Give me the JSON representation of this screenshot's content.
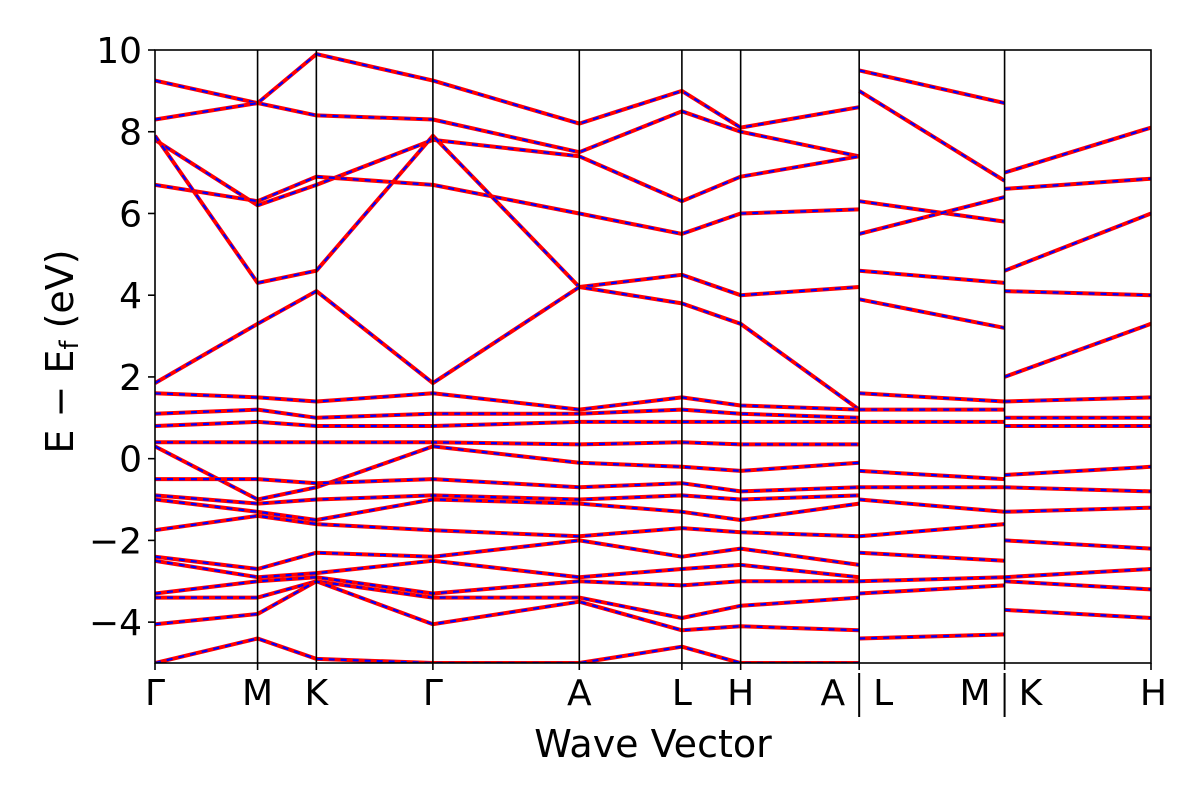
{
  "chart_data": {
    "type": "line",
    "xlabel": "Wave Vector",
    "ylabel": "E − E",
    "ylabel_subscript": "f",
    "ylabel_unit": "(eV)",
    "ylim": [
      -5,
      10
    ],
    "yticks": [
      -4,
      -2,
      0,
      2,
      4,
      6,
      8,
      10
    ],
    "ytick_labels": [
      "−4",
      "−2",
      "0",
      "2",
      "4",
      "6",
      "8",
      "10"
    ],
    "xlim": [
      0,
      1
    ],
    "kpoints": [
      {
        "label": "Γ",
        "x": 0.0,
        "divider": false
      },
      {
        "label": "M",
        "x": 0.103,
        "divider": false
      },
      {
        "label": "K",
        "x": 0.162,
        "divider": false
      },
      {
        "label": "Γ",
        "x": 0.279,
        "divider": false
      },
      {
        "label": "A",
        "x": 0.426,
        "divider": false
      },
      {
        "label": "L",
        "x": 0.529,
        "divider": false
      },
      {
        "label": "H",
        "x": 0.588,
        "divider": false
      },
      {
        "label": "A",
        "x": 0.707,
        "divider": true,
        "after": "L"
      },
      {
        "label": "M",
        "x": 0.853,
        "divider": true,
        "after": "K"
      },
      {
        "label": "H",
        "x": 1.0,
        "divider": false
      }
    ],
    "series": [
      {
        "color": "#ff0000",
        "style": "solid"
      },
      {
        "color": "#0000ff",
        "style": "dashed"
      }
    ],
    "bands": [
      {
        "x": [
          0,
          0.103,
          0.162,
          0.279,
          0.426,
          0.529,
          0.588,
          0.707
        ],
        "y": [
          9.25,
          8.7,
          9.9,
          9.25,
          8.2,
          9.0,
          8.1,
          8.6
        ]
      },
      {
        "x": [
          0,
          0.103,
          0.162,
          0.279,
          0.426,
          0.529,
          0.588,
          0.707
        ],
        "y": [
          8.3,
          8.7,
          8.4,
          8.3,
          7.5,
          8.5,
          8.0,
          7.4
        ]
      },
      {
        "x": [
          0,
          0.103,
          0.162,
          0.279,
          0.426,
          0.529,
          0.588,
          0.707
        ],
        "y": [
          7.8,
          6.2,
          6.7,
          7.8,
          7.4,
          6.3,
          6.9,
          7.4
        ]
      },
      {
        "x": [
          0,
          0.103,
          0.162,
          0.279,
          0.426,
          0.529,
          0.588,
          0.707
        ],
        "y": [
          6.7,
          6.3,
          6.9,
          6.7,
          6.0,
          5.5,
          6.0,
          6.1
        ]
      },
      {
        "x": [
          0,
          0.103,
          0.162,
          0.279,
          0.426,
          0.529,
          0.588,
          0.707
        ],
        "y": [
          7.9,
          4.3,
          4.6,
          7.9,
          4.2,
          4.5,
          4.0,
          4.2
        ]
      },
      {
        "x": [
          0,
          0.103,
          0.162,
          0.279,
          0.426,
          0.529,
          0.588,
          0.707
        ],
        "y": [
          1.85,
          3.3,
          4.1,
          1.85,
          4.2,
          3.8,
          3.3,
          1.2
        ]
      },
      {
        "x": [
          0,
          0.103,
          0.162,
          0.279,
          0.426,
          0.529,
          0.588,
          0.707
        ],
        "y": [
          1.6,
          1.5,
          1.4,
          1.6,
          1.2,
          1.5,
          1.3,
          1.2
        ]
      },
      {
        "x": [
          0,
          0.103,
          0.162,
          0.279,
          0.426,
          0.529,
          0.588,
          0.707
        ],
        "y": [
          1.1,
          1.2,
          1.0,
          1.1,
          1.1,
          1.2,
          1.1,
          1.0
        ]
      },
      {
        "x": [
          0,
          0.103,
          0.162,
          0.279,
          0.426,
          0.529,
          0.588,
          0.707
        ],
        "y": [
          0.8,
          0.9,
          0.8,
          0.8,
          0.9,
          0.9,
          0.9,
          0.9
        ]
      },
      {
        "x": [
          0,
          0.103,
          0.162,
          0.279,
          0.426,
          0.529,
          0.588,
          0.707
        ],
        "y": [
          0.4,
          0.4,
          0.4,
          0.4,
          0.35,
          0.4,
          0.35,
          0.35
        ]
      },
      {
        "x": [
          0,
          0.103,
          0.162,
          0.279,
          0.426,
          0.529,
          0.588,
          0.707
        ],
        "y": [
          0.3,
          -1.0,
          -0.7,
          0.3,
          -0.1,
          -0.2,
          -0.3,
          -0.1
        ]
      },
      {
        "x": [
          0,
          0.103,
          0.162,
          0.279,
          0.426,
          0.529,
          0.588,
          0.707
        ],
        "y": [
          -0.5,
          -0.5,
          -0.6,
          -0.5,
          -0.7,
          -0.6,
          -0.8,
          -0.7
        ]
      },
      {
        "x": [
          0,
          0.103,
          0.162,
          0.279,
          0.426,
          0.529,
          0.588,
          0.707
        ],
        "y": [
          -0.9,
          -1.1,
          -1.0,
          -0.9,
          -1.0,
          -0.9,
          -1.0,
          -0.9
        ]
      },
      {
        "x": [
          0,
          0.103,
          0.162,
          0.279,
          0.426,
          0.529,
          0.588,
          0.707
        ],
        "y": [
          -1.0,
          -1.3,
          -1.5,
          -1.0,
          -1.1,
          -1.3,
          -1.5,
          -1.1
        ]
      },
      {
        "x": [
          0,
          0.103,
          0.162,
          0.279,
          0.426,
          0.529,
          0.588,
          0.707
        ],
        "y": [
          -1.75,
          -1.4,
          -1.6,
          -1.75,
          -1.9,
          -1.7,
          -1.8,
          -1.9
        ]
      },
      {
        "x": [
          0,
          0.103,
          0.162,
          0.279,
          0.426,
          0.529,
          0.588,
          0.707
        ],
        "y": [
          -2.4,
          -2.7,
          -2.3,
          -2.4,
          -2.0,
          -2.4,
          -2.2,
          -2.6
        ]
      },
      {
        "x": [
          0,
          0.103,
          0.162,
          0.279,
          0.426,
          0.529,
          0.588,
          0.707
        ],
        "y": [
          -2.5,
          -2.9,
          -2.8,
          -2.5,
          -2.9,
          -2.7,
          -2.6,
          -2.9
        ]
      },
      {
        "x": [
          0,
          0.103,
          0.162,
          0.279,
          0.426,
          0.529,
          0.588,
          0.707
        ],
        "y": [
          -3.3,
          -3.0,
          -2.9,
          -3.3,
          -3.0,
          -3.1,
          -3.0,
          -3.0
        ]
      },
      {
        "x": [
          0,
          0.103,
          0.162,
          0.279,
          0.426,
          0.529,
          0.588,
          0.707
        ],
        "y": [
          -3.4,
          -3.4,
          -3.0,
          -3.4,
          -3.4,
          -3.9,
          -3.6,
          -3.4
        ]
      },
      {
        "x": [
          0,
          0.103,
          0.162,
          0.279,
          0.426,
          0.529,
          0.588,
          0.707
        ],
        "y": [
          -4.05,
          -3.8,
          -3.0,
          -4.05,
          -3.5,
          -4.2,
          -4.1,
          -4.2
        ]
      },
      {
        "x": [
          0,
          0.103,
          0.162,
          0.279,
          0.426,
          0.529,
          0.588,
          0.707
        ],
        "y": [
          -5.0,
          -4.4,
          -4.9,
          -5.0,
          -5.0,
          -4.6,
          -5.0,
          -5.0
        ]
      },
      {
        "x": [
          0.707,
          0.853
        ],
        "y": [
          9.5,
          8.7
        ]
      },
      {
        "x": [
          0.707,
          0.853
        ],
        "y": [
          9.0,
          6.8
        ]
      },
      {
        "x": [
          0.707,
          0.853
        ],
        "y": [
          6.3,
          5.8
        ]
      },
      {
        "x": [
          0.707,
          0.853
        ],
        "y": [
          5.5,
          6.4
        ]
      },
      {
        "x": [
          0.707,
          0.853
        ],
        "y": [
          4.6,
          4.3
        ]
      },
      {
        "x": [
          0.707,
          0.853
        ],
        "y": [
          3.9,
          3.2
        ]
      },
      {
        "x": [
          0.707,
          0.853
        ],
        "y": [
          1.6,
          1.4
        ]
      },
      {
        "x": [
          0.707,
          0.853
        ],
        "y": [
          1.2,
          1.2
        ]
      },
      {
        "x": [
          0.707,
          0.853
        ],
        "y": [
          0.9,
          0.9
        ]
      },
      {
        "x": [
          0.707,
          0.853
        ],
        "y": [
          -0.3,
          -0.5
        ]
      },
      {
        "x": [
          0.707,
          0.853
        ],
        "y": [
          -0.7,
          -0.7
        ]
      },
      {
        "x": [
          0.707,
          0.853
        ],
        "y": [
          -1.0,
          -1.3
        ]
      },
      {
        "x": [
          0.707,
          0.853
        ],
        "y": [
          -1.9,
          -1.6
        ]
      },
      {
        "x": [
          0.707,
          0.853
        ],
        "y": [
          -2.3,
          -2.5
        ]
      },
      {
        "x": [
          0.707,
          0.853
        ],
        "y": [
          -3.0,
          -2.9
        ]
      },
      {
        "x": [
          0.707,
          0.853
        ],
        "y": [
          -3.3,
          -3.1
        ]
      },
      {
        "x": [
          0.707,
          0.853
        ],
        "y": [
          -4.4,
          -4.3
        ]
      },
      {
        "x": [
          0.853,
          1.0
        ],
        "y": [
          7.0,
          8.1
        ]
      },
      {
        "x": [
          0.853,
          1.0
        ],
        "y": [
          6.6,
          6.85
        ]
      },
      {
        "x": [
          0.853,
          1.0
        ],
        "y": [
          4.6,
          6.0
        ]
      },
      {
        "x": [
          0.853,
          1.0
        ],
        "y": [
          4.1,
          4.0
        ]
      },
      {
        "x": [
          0.853,
          1.0
        ],
        "y": [
          2.0,
          3.3
        ]
      },
      {
        "x": [
          0.853,
          1.0
        ],
        "y": [
          1.4,
          1.5
        ]
      },
      {
        "x": [
          0.853,
          1.0
        ],
        "y": [
          1.0,
          1.0
        ]
      },
      {
        "x": [
          0.853,
          1.0
        ],
        "y": [
          0.8,
          0.8
        ]
      },
      {
        "x": [
          0.853,
          1.0
        ],
        "y": [
          -0.4,
          -0.2
        ]
      },
      {
        "x": [
          0.853,
          1.0
        ],
        "y": [
          -0.7,
          -0.8
        ]
      },
      {
        "x": [
          0.853,
          1.0
        ],
        "y": [
          -1.3,
          -1.2
        ]
      },
      {
        "x": [
          0.853,
          1.0
        ],
        "y": [
          -2.0,
          -2.2
        ]
      },
      {
        "x": [
          0.853,
          1.0
        ],
        "y": [
          -2.9,
          -2.7
        ]
      },
      {
        "x": [
          0.853,
          1.0
        ],
        "y": [
          -3.0,
          -3.2
        ]
      },
      {
        "x": [
          0.853,
          1.0
        ],
        "y": [
          -3.7,
          -3.9
        ]
      }
    ]
  }
}
